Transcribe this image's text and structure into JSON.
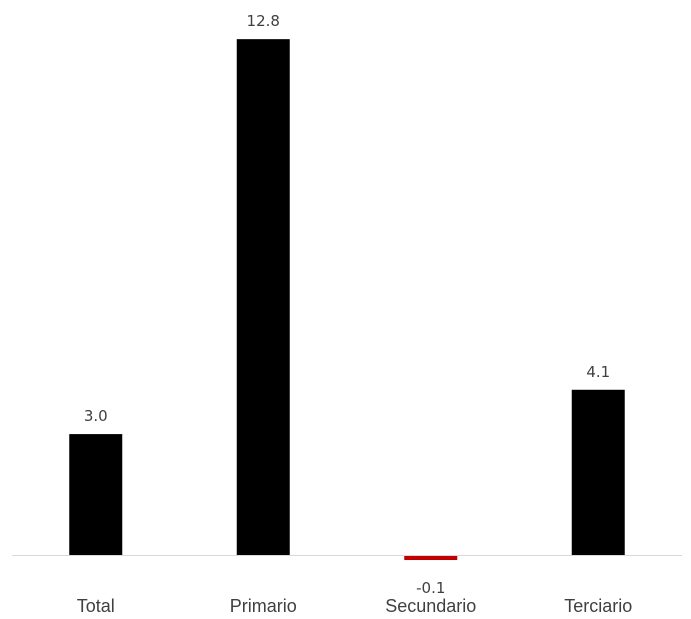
{
  "chart_data": {
    "type": "bar",
    "categories": [
      "Total",
      "Primario",
      "Secundario",
      "Terciario"
    ],
    "values": [
      3.0,
      12.8,
      -0.1,
      4.1
    ],
    "value_labels": [
      "3.0",
      "12.8",
      "-0.1",
      "4.1"
    ],
    "title": "",
    "xlabel": "",
    "ylabel": "",
    "ylim": [
      -0.2,
      13.8
    ],
    "grid": false,
    "legend": "none",
    "colors": {
      "positive": "#000000",
      "negative": "#c00000",
      "axis": "#d9d9d9",
      "text": "#404040"
    }
  }
}
